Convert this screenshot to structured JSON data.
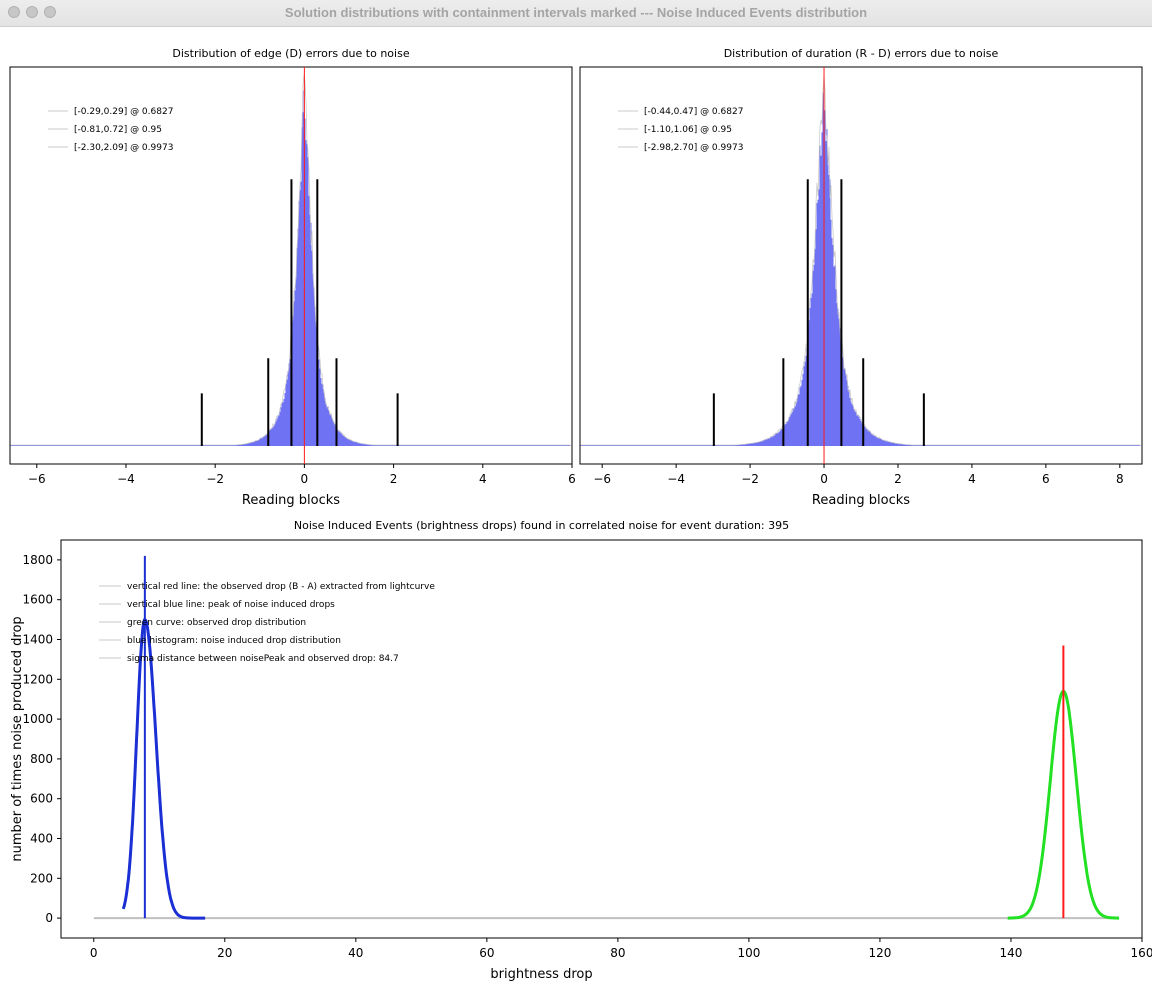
{
  "window": {
    "title": "Solution distributions with containment intervals marked --- Noise Induced Events distribution"
  },
  "colors": {
    "histogram_fill": "#6f72f2",
    "histogram_edge": "#bdbdbd",
    "red_line": "#ff1a1a",
    "blue_curve": "#1a2fd4",
    "green_curve": "#22e022",
    "interval_bar": "#000000",
    "baseline": "#c0c0c0"
  },
  "chart_data": [
    {
      "type": "bar",
      "title": "Distribution of edge (D) errors due to noise",
      "xlabel": "Reading blocks",
      "ylabel": "",
      "xlim": [
        -6.6,
        6.0
      ],
      "xticks": [
        -6,
        -4,
        -2,
        0,
        2,
        4,
        6
      ],
      "distribution": {
        "center": 0.0,
        "sigma": 0.29,
        "tail": "laplace-like"
      },
      "red_line_x": 0.0,
      "legend": [
        {
          "label": "[-0.29,0.29] @ 0.6827",
          "lo": -0.29,
          "hi": 0.29,
          "bar_height": 0.76
        },
        {
          "label": "[-0.81,0.72] @ 0.95",
          "lo": -0.81,
          "hi": 0.72,
          "bar_height": 0.25
        },
        {
          "label": "[-2.30,2.09] @ 0.9973",
          "lo": -2.3,
          "hi": 2.09,
          "bar_height": 0.15
        }
      ]
    },
    {
      "type": "bar",
      "title": "Distribution of duration (R - D) errors due to noise",
      "xlabel": "Reading blocks",
      "ylabel": "",
      "xlim": [
        -6.6,
        8.6
      ],
      "xticks": [
        -6,
        -4,
        -2,
        0,
        2,
        4,
        6,
        8
      ],
      "distribution": {
        "center": 0.0,
        "sigma": 0.45,
        "tail": "laplace-like"
      },
      "red_line_x": 0.0,
      "legend": [
        {
          "label": "[-0.44,0.47] @ 0.6827",
          "lo": -0.44,
          "hi": 0.47,
          "bar_height": 0.76
        },
        {
          "label": "[-1.10,1.06] @ 0.95",
          "lo": -1.1,
          "hi": 1.06,
          "bar_height": 0.25
        },
        {
          "label": "[-2.98,2.70] @ 0.9973",
          "lo": -2.98,
          "hi": 2.7,
          "bar_height": 0.15
        }
      ]
    },
    {
      "type": "line",
      "title": "Noise Induced Events (brightness drops) found in correlated noise for event duration: 395",
      "xlabel": "brightness drop",
      "ylabel": "number of times noise produced drop",
      "xlim": [
        -5,
        160
      ],
      "ylim": [
        -100,
        1900
      ],
      "xticks": [
        0,
        20,
        40,
        60,
        80,
        100,
        120,
        140,
        160
      ],
      "yticks": [
        0,
        200,
        400,
        600,
        800,
        1000,
        1200,
        1400,
        1600,
        1800
      ],
      "series": [
        {
          "name": "blue histogram: noise induced drop distribution",
          "kind": "gaussian",
          "center": 7.8,
          "sigma": 1.25,
          "peak": 1500,
          "range": [
            4.5,
            17
          ]
        },
        {
          "name": "green curve: observed drop distribution",
          "kind": "gaussian",
          "center": 148.0,
          "sigma": 2.0,
          "peak": 1140,
          "range": [
            139.5,
            156.5
          ]
        }
      ],
      "baseline_range": [
        0,
        156
      ],
      "blue_line": {
        "x": 7.8,
        "y_top": 1820
      },
      "red_line": {
        "x": 148.0,
        "y_top": 1370
      },
      "legend": [
        "vertical red line: the observed drop (B - A) extracted from lightcurve",
        "vertical blue line: peak of noise induced drops",
        "green curve: observed drop distribution",
        "blue histogram: noise induced drop distribution",
        "sigma distance between noisePeak and observed drop: 84.7"
      ]
    }
  ]
}
